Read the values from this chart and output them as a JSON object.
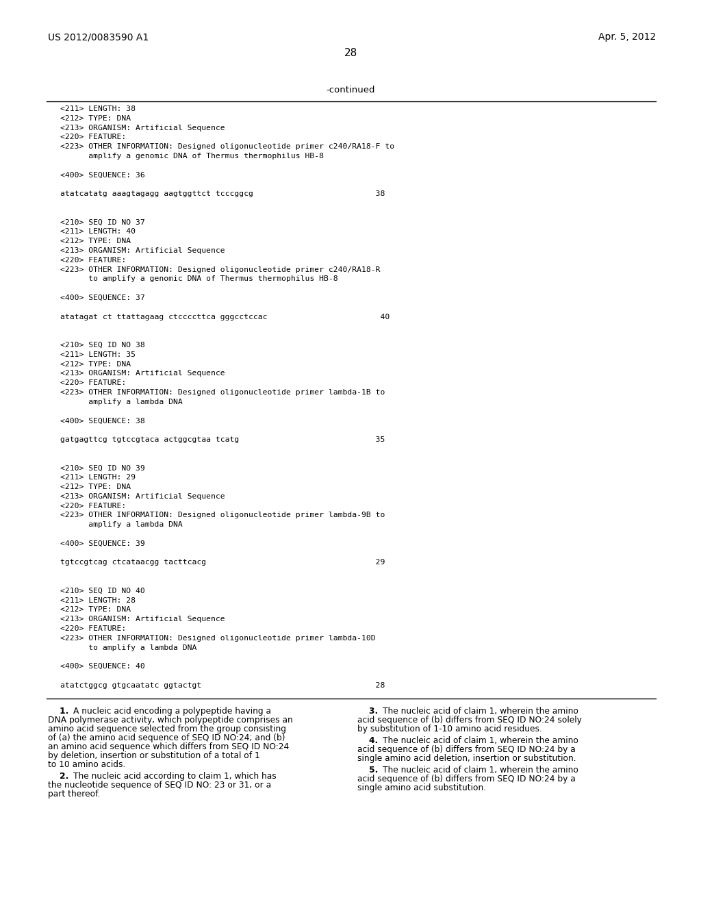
{
  "header_left": "US 2012/0083590 A1",
  "header_right": "Apr. 5, 2012",
  "page_number": "28",
  "continued_label": "-continued",
  "background_color": "#ffffff",
  "text_color": "#000000",
  "seq_lines": [
    "<211> LENGTH: 38",
    "<212> TYPE: DNA",
    "<213> ORGANISM: Artificial Sequence",
    "<220> FEATURE:",
    "<223> OTHER INFORMATION: Designed oligonucleotide primer c240/RA18-F to",
    "      amplify a genomic DNA of Thermus thermophilus HB-8",
    "",
    "<400> SEQUENCE: 36",
    "",
    "atatcatatg aaagtagagg aagtggttct tcccggcg                          38",
    "",
    "",
    "<210> SEQ ID NO 37",
    "<211> LENGTH: 40",
    "<212> TYPE: DNA",
    "<213> ORGANISM: Artificial Sequence",
    "<220> FEATURE:",
    "<223> OTHER INFORMATION: Designed oligonucleotide primer c240/RA18-R",
    "      to amplify a genomic DNA of Thermus thermophilus HB-8",
    "",
    "<400> SEQUENCE: 37",
    "",
    "atatagat ct ttattagaag ctccccttca gggcctccac                        40",
    "",
    "",
    "<210> SEQ ID NO 38",
    "<211> LENGTH: 35",
    "<212> TYPE: DNA",
    "<213> ORGANISM: Artificial Sequence",
    "<220> FEATURE:",
    "<223> OTHER INFORMATION: Designed oligonucleotide primer lambda-1B to",
    "      amplify a lambda DNA",
    "",
    "<400> SEQUENCE: 38",
    "",
    "gatgagttcg tgtccgtaca actggcgtaa tcatg                             35",
    "",
    "",
    "<210> SEQ ID NO 39",
    "<211> LENGTH: 29",
    "<212> TYPE: DNA",
    "<213> ORGANISM: Artificial Sequence",
    "<220> FEATURE:",
    "<223> OTHER INFORMATION: Designed oligonucleotide primer lambda-9B to",
    "      amplify a lambda DNA",
    "",
    "<400> SEQUENCE: 39",
    "",
    "tgtccgtcag ctcataacgg tacttcacg                                    29",
    "",
    "",
    "<210> SEQ ID NO 40",
    "<211> LENGTH: 28",
    "<212> TYPE: DNA",
    "<213> ORGANISM: Artificial Sequence",
    "<220> FEATURE:",
    "<223> OTHER INFORMATION: Designed oligonucleotide primer lambda-10D",
    "      to amplify a lambda DNA",
    "",
    "<400> SEQUENCE: 40",
    "",
    "atatctggcg gtgcaatatc ggtactgt                                     28"
  ],
  "claims_left": [
    {
      "number": "1",
      "text": "A nucleic acid encoding a polypeptide having a DNA polymerase activity, which polypeptide comprises an amino acid sequence selected from the group consisting of (a) the amino acid sequence of SEQ ID NO:24; and (b) an amino acid sequence which differs from SEQ ID NO:24 by deletion, insertion or substitution of a total of 1 to 10 amino acids."
    },
    {
      "number": "2",
      "text": "The nucleic acid according to claim 1, which has the nucleotide sequence of SEQ ID NO: 23 or 31, or a part thereof."
    }
  ],
  "claims_right": [
    {
      "number": "3",
      "text": "The nucleic acid of claim 1, wherein the amino acid sequence of (b) differs from SEQ ID NO:24 solely by substitution of 1-10 amino acid residues."
    },
    {
      "number": "4",
      "text": "The nucleic acid of claim 1, wherein the amino acid sequence of (b) differs from SEQ ID NO:24 by a single amino acid deletion, insertion or substitution."
    },
    {
      "number": "5",
      "text": "The nucleic acid of claim 1, wherein the amino acid sequence of (b) differs from SEQ ID NO:24 by a single amino acid substitution."
    }
  ]
}
